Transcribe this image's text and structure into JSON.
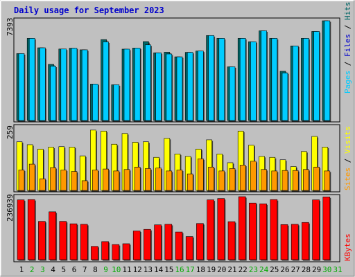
{
  "chart_data": {
    "type": "bar",
    "title": "Daily usage for September 2023",
    "days": [
      "1",
      "2",
      "3",
      "4",
      "5",
      "6",
      "7",
      "8",
      "9",
      "10",
      "11",
      "12",
      "13",
      "14",
      "15",
      "16",
      "17",
      "18",
      "19",
      "20",
      "21",
      "22",
      "23",
      "24",
      "25",
      "26",
      "27",
      "28",
      "29",
      "30",
      "31"
    ],
    "weekend_days": [
      "2",
      "3",
      "9",
      "10",
      "16",
      "17",
      "23",
      "24",
      "30",
      "31"
    ],
    "colors": {
      "hits": "#006666",
      "files": "#00ccff",
      "pages": "#00ccff",
      "visits": "#ffff00",
      "sites": "#ff9900",
      "kbytes": "#ff0000",
      "weekday_label": "#000000",
      "weekend_label": "#00aa00",
      "background": "#c0c0c0",
      "title": "#0000cc"
    },
    "panels": [
      {
        "id": "hits_files",
        "max_label": "7393",
        "legend": [
          {
            "text": "Pages",
            "color": "#00ccff"
          },
          {
            "text": " / ",
            "color": "#000000"
          },
          {
            "text": "Files",
            "color": "#0000cc"
          },
          {
            "text": " / ",
            "color": "#000000"
          },
          {
            "text": "Hits",
            "color": "#006666"
          }
        ],
        "ymax": 7393,
        "series": [
          {
            "name": "Hits",
            "color": "#006666",
            "values": [
              4960,
              6090,
              5390,
              4160,
              5300,
              5360,
              5240,
              2700,
              6000,
              2650,
              5290,
              5370,
              5850,
              5020,
              5060,
              4720,
              5050,
              5150,
              6300,
              6090,
              3980,
              6090,
              5840,
              6650,
              6090,
              3650,
              5530,
              6090,
              6600,
              7393,
              0
            ]
          },
          {
            "name": "Files",
            "color": "#00ccff",
            "values": [
              4960,
              6090,
              5390,
              4030,
              5300,
              5360,
              5240,
              2700,
              5830,
              2650,
              5290,
              5370,
              5610,
              5020,
              4930,
              4720,
              5050,
              5150,
              6300,
              6090,
              3980,
              6090,
              5840,
              6650,
              6090,
              3530,
              5530,
              6090,
              6600,
              7393,
              0
            ]
          }
        ]
      },
      {
        "id": "visits_sites",
        "max_label": "259",
        "legend": [
          {
            "text": "Sites",
            "color": "#ff9900"
          },
          {
            "text": " / ",
            "color": "#000000"
          },
          {
            "text": "Visits",
            "color": "#ffff00"
          }
        ],
        "ymax": 259,
        "series": [
          {
            "name": "Visits",
            "color": "#ffff00",
            "values": [
              200,
              188,
              170,
              178,
              180,
              178,
              142,
              248,
              244,
              190,
              234,
              198,
              200,
              136,
              214,
              150,
              140,
              170,
              208,
              150,
              114,
              244,
              186,
              140,
              136,
              126,
              98,
              160,
              222,
              178,
              0
            ]
          },
          {
            "name": "Sites",
            "color": "#ff9900",
            "values": [
              84,
              108,
              48,
              94,
              84,
              78,
              40,
              84,
              88,
              80,
              86,
              96,
              90,
              92,
              80,
              84,
              68,
              130,
              96,
              80,
              90,
              104,
              120,
              86,
              80,
              82,
              82,
              86,
              96,
              80,
              0
            ]
          }
        ]
      },
      {
        "id": "kbytes",
        "max_label": "236939",
        "legend": [
          {
            "text": "KBytes",
            "color": "#ff0000"
          }
        ],
        "ymax": 236939,
        "series": [
          {
            "name": "KBytes",
            "color": "#ff0000",
            "values": [
              225000,
              226000,
              144000,
              180000,
              144000,
              135000,
              133000,
              50000,
              68000,
              57000,
              60000,
              108000,
              114000,
              131000,
              133000,
              104000,
              87000,
              136000,
              225000,
              230000,
              143000,
              236939,
              213000,
              210000,
              226000,
              132000,
              133000,
              140000,
              225000,
              236000,
              0
            ]
          }
        ]
      }
    ]
  }
}
